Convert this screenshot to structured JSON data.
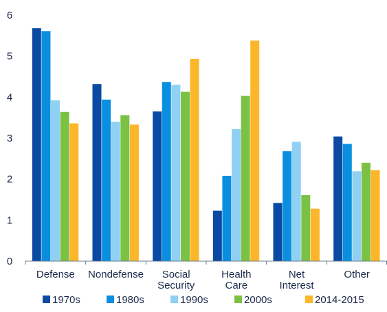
{
  "chart_data": {
    "type": "bar",
    "categories": [
      "Defense",
      "Nondefense",
      "Social Security",
      "Health Care",
      "Net Interest",
      "Other"
    ],
    "category_lines": [
      [
        "Defense"
      ],
      [
        "Nondefense"
      ],
      [
        "Social",
        "Security"
      ],
      [
        "Health",
        "Care"
      ],
      [
        "Net",
        "Interest"
      ],
      [
        "Other"
      ]
    ],
    "series": [
      {
        "name": "1970s",
        "color": "#0b4aa2",
        "values": [
          5.68,
          4.32,
          3.65,
          1.23,
          1.42,
          3.04
        ]
      },
      {
        "name": "1980s",
        "color": "#0a8fe0",
        "values": [
          5.61,
          3.94,
          4.37,
          2.08,
          2.68,
          2.86
        ]
      },
      {
        "name": "1990s",
        "color": "#8fd0f3",
        "values": [
          3.92,
          3.4,
          4.3,
          3.22,
          2.91,
          2.19
        ]
      },
      {
        "name": "2000s",
        "color": "#7bc144",
        "values": [
          3.64,
          3.56,
          4.13,
          4.03,
          1.61,
          2.4
        ]
      },
      {
        "name": "2014-2015",
        "color": "#fbb729",
        "values": [
          3.36,
          3.33,
          4.93,
          5.38,
          1.28,
          2.22
        ]
      }
    ],
    "ylim": [
      0,
      6
    ],
    "yticks": [
      0,
      1,
      2,
      3,
      4,
      5,
      6
    ],
    "grid": false,
    "legend": "bottom",
    "title": "",
    "xlabel": "",
    "ylabel": ""
  }
}
